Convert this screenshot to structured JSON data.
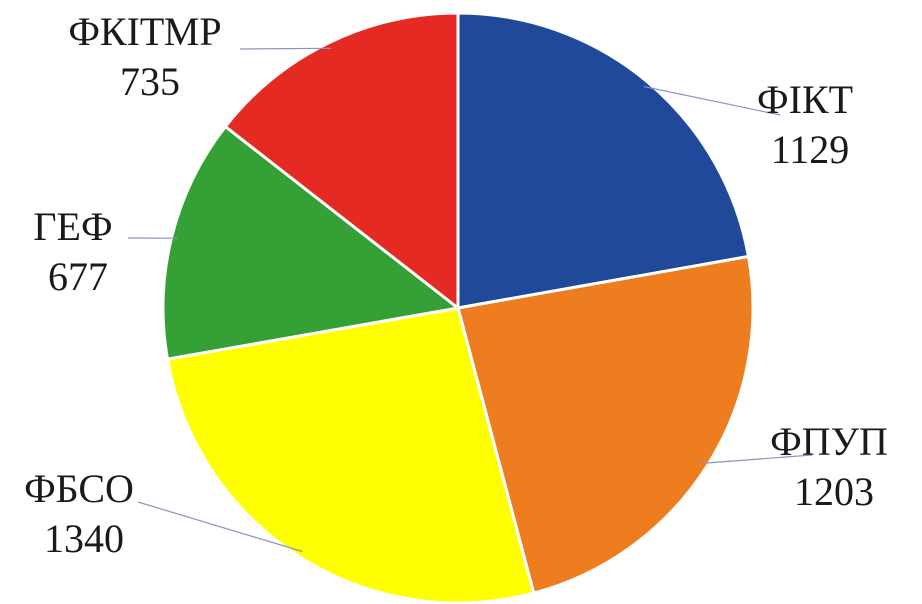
{
  "chart_data": {
    "type": "pie",
    "title": "",
    "categories": [
      "ФІКТ",
      "ФПУП",
      "ФБСО",
      "ГЕФ",
      "ФКІТМР"
    ],
    "values": [
      1129,
      1203,
      1340,
      677,
      735
    ],
    "colors": [
      "#204a99",
      "#ed7d1e",
      "#ffff00",
      "#35a035",
      "#e52a23"
    ],
    "start_angle_deg": 0,
    "direction": "clockwise",
    "legend": "none",
    "data_labels": "category and value, outside with leader lines"
  }
}
